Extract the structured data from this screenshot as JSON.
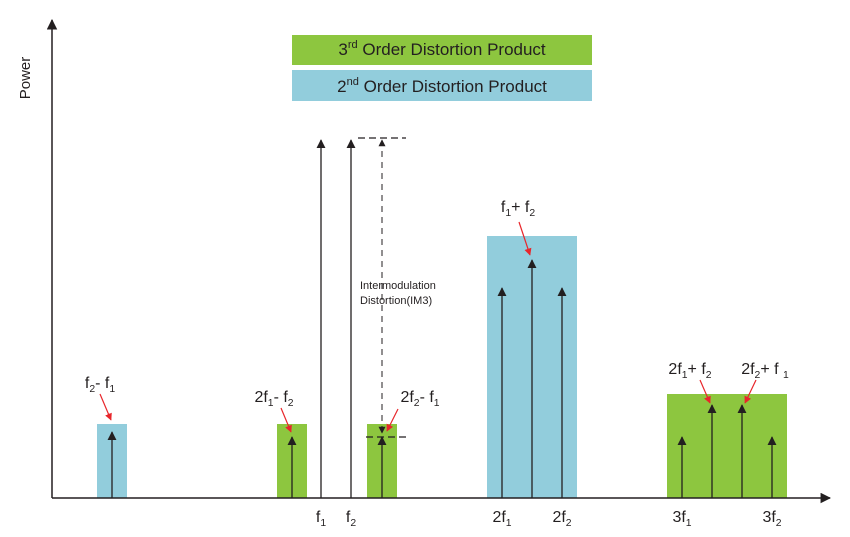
{
  "y_axis_label": "Power",
  "legend": {
    "third": [
      "3",
      "rd",
      " Order Distortion Product"
    ],
    "second": [
      "2",
      "nd",
      " Order Distortion Product"
    ]
  },
  "annotation": {
    "line1": "Intermodulation",
    "line2": "Distortion(IM3)"
  },
  "product_labels": [
    [
      "f",
      "2",
      "- f",
      "1"
    ],
    [
      "2f",
      "1",
      "- f",
      "2"
    ],
    [
      "2f",
      "2",
      "- f",
      "1"
    ],
    [
      "f",
      "1",
      "+ f",
      "2"
    ],
    [
      "2f",
      "1",
      "+ f",
      "2"
    ],
    [
      "2f",
      "2",
      "+ f ",
      "1"
    ]
  ],
  "axis_labels": [
    [
      "f",
      "1"
    ],
    [
      "f",
      "2"
    ],
    [
      "2f",
      "1"
    ],
    [
      "2f",
      "2"
    ],
    [
      "3f",
      "1"
    ],
    [
      "3f",
      "2"
    ]
  ]
}
